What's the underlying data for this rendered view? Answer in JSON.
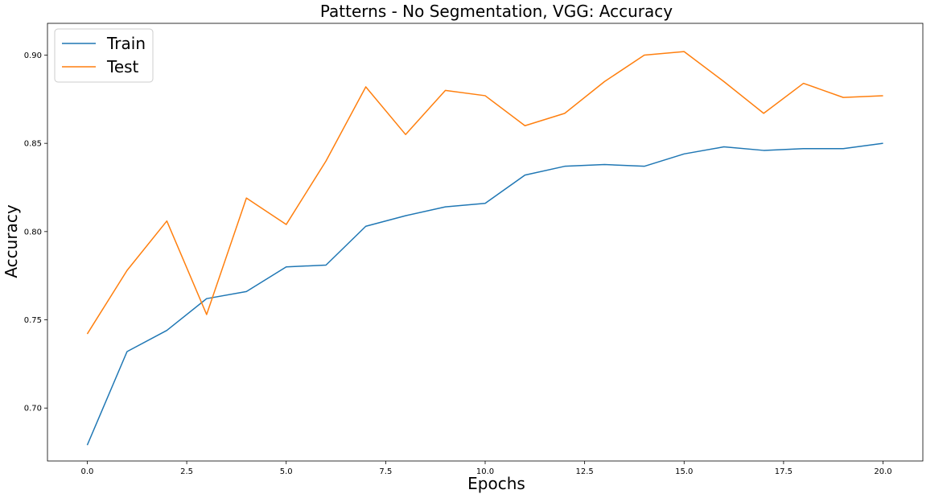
{
  "chart_data": {
    "type": "line",
    "title": "Patterns - No Segmentation, VGG: Accuracy",
    "xlabel": "Epochs",
    "ylabel": "Accuracy",
    "xlim": [
      -1,
      21
    ],
    "ylim": [
      0.67,
      0.918
    ],
    "xticks": [
      0.0,
      2.5,
      5.0,
      7.5,
      10.0,
      12.5,
      15.0,
      17.5,
      20.0
    ],
    "xtick_labels": [
      "0.0",
      "2.5",
      "5.0",
      "7.5",
      "10.0",
      "12.5",
      "15.0",
      "17.5",
      "20.0"
    ],
    "yticks": [
      0.7,
      0.75,
      0.8,
      0.85,
      0.9
    ],
    "ytick_labels": [
      "0.70",
      "0.75",
      "0.80",
      "0.85",
      "0.90"
    ],
    "grid": false,
    "legend_position": "top-left",
    "x": [
      0,
      1,
      2,
      3,
      4,
      5,
      6,
      7,
      8,
      9,
      10,
      11,
      12,
      13,
      14,
      15,
      16,
      17,
      18,
      19,
      20
    ],
    "series": [
      {
        "name": "Train",
        "color": "#1f77b4",
        "values": [
          0.679,
          0.732,
          0.744,
          0.762,
          0.766,
          0.78,
          0.781,
          0.803,
          0.809,
          0.814,
          0.816,
          0.832,
          0.837,
          0.838,
          0.837,
          0.844,
          0.848,
          0.846,
          0.847,
          0.847,
          0.85
        ]
      },
      {
        "name": "Test",
        "color": "#ff7f0e",
        "values": [
          0.742,
          0.778,
          0.806,
          0.753,
          0.819,
          0.804,
          0.84,
          0.882,
          0.855,
          0.88,
          0.877,
          0.86,
          0.867,
          0.885,
          0.9,
          0.902,
          0.885,
          0.867,
          0.884,
          0.876,
          0.877
        ]
      }
    ]
  }
}
